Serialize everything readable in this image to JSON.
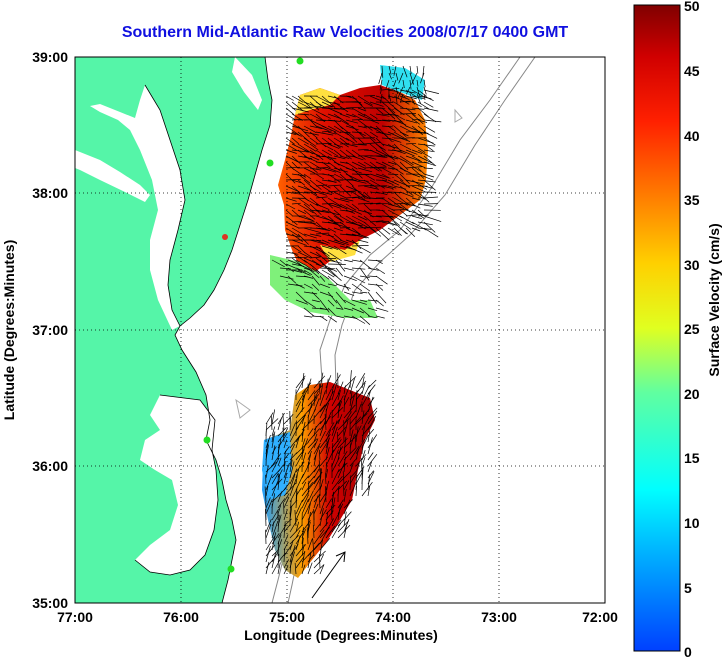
{
  "title": "Southern Mid-Atlantic Raw Velocities 2008/07/17 0400 GMT",
  "x_axis": {
    "label": "Longitude (Degrees:Minutes)",
    "ticks": [
      "77:00",
      "76:00",
      "75:00",
      "74:00",
      "73:00",
      "72:00"
    ]
  },
  "y_axis": {
    "label": "Latitude (Degrees:Minutes)",
    "ticks": [
      "39:00",
      "38:00",
      "37:00",
      "36:00",
      "35:00"
    ]
  },
  "colorbar": {
    "label": "Surface Velocity (cm/s)",
    "ticks": [
      "50",
      "45",
      "40",
      "35",
      "30",
      "25",
      "20",
      "15",
      "10",
      "5",
      "0"
    ],
    "min": 0,
    "max": 50
  },
  "colors": {
    "land": "#55f5a8",
    "title": "#1010e0",
    "station": "#22dd22"
  },
  "map": {
    "lon_range": [
      -77,
      -72
    ],
    "lat_range": [
      35,
      39
    ],
    "grid": true,
    "scale_arrow": true
  }
}
